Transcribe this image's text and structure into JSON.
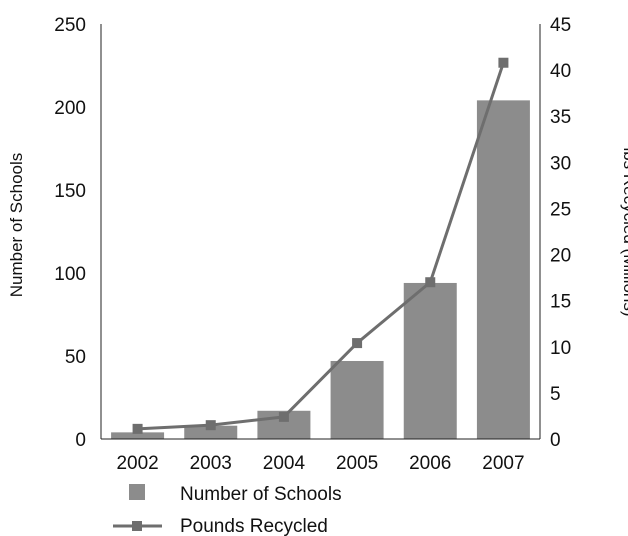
{
  "chart_data": {
    "type": "bar",
    "categories": [
      "2002",
      "2003",
      "2004",
      "2005",
      "2006",
      "2007"
    ],
    "series": [
      {
        "name": "Number of Schools",
        "type": "bar",
        "axis": "left",
        "values": [
          4,
          8,
          17,
          47,
          94,
          204
        ],
        "color": "#8c8c8c"
      },
      {
        "name": "Pounds Recycled",
        "type": "line",
        "axis": "right",
        "values": [
          1.1,
          1.5,
          2.4,
          10.4,
          17.0,
          40.8
        ],
        "color": "#6e6e6e"
      }
    ],
    "ylabel": "Number of Schools",
    "ylim": [
      0,
      250
    ],
    "yticks": [
      "0",
      "50",
      "100",
      "150",
      "200",
      "250"
    ],
    "y2label": "lbs Recycled (Millions)",
    "y2lim": [
      0,
      45
    ],
    "y2ticks": [
      "0",
      "5",
      "10",
      "15",
      "20",
      "25",
      "30",
      "35",
      "40",
      "45"
    ],
    "grid": false,
    "legend_position": "bottom"
  }
}
